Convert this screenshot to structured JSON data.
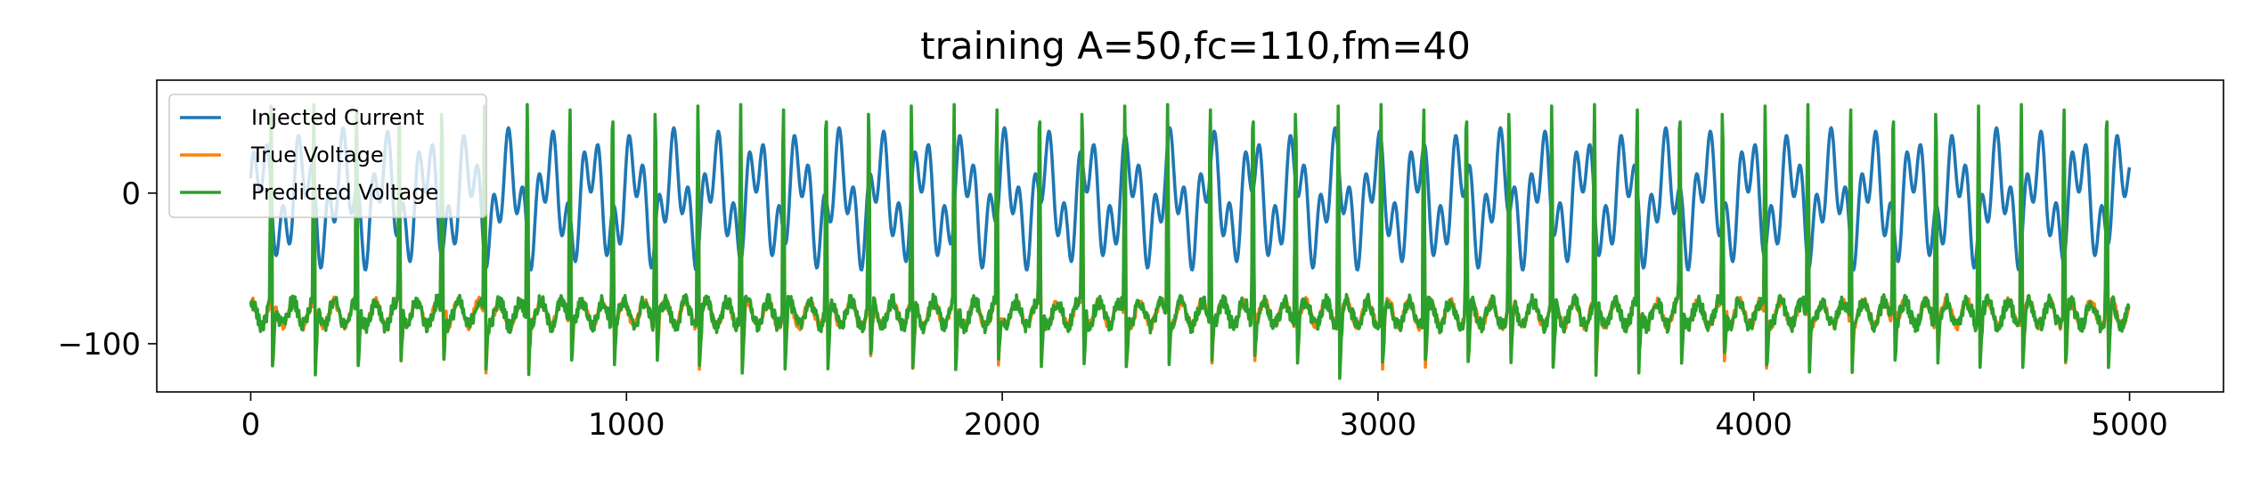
{
  "chart_data": {
    "type": "line",
    "title": "training A=50,fc=110,fm=40",
    "xlabel": "",
    "ylabel": "",
    "xlim": [
      -250,
      5250
    ],
    "ylim": [
      -132,
      75
    ],
    "x_ticks": [
      0,
      1000,
      2000,
      3000,
      4000,
      5000
    ],
    "x_tick_labels": [
      "0",
      "1000",
      "2000",
      "3000",
      "4000",
      "5000"
    ],
    "y_ticks": [
      0,
      -100
    ],
    "y_tick_labels": [
      "0",
      "−100"
    ],
    "grid": false,
    "legend_position": "top-left",
    "x_range": [
      0,
      5000
    ],
    "current_signal": {
      "amplitude": 50,
      "carrier_period": 110,
      "modulation_period": 40
    },
    "series": [
      {
        "name": "Injected Current",
        "color": "#1f77b4",
        "x_sampled": [
          0,
          50,
          100,
          150,
          200,
          250,
          300,
          350,
          400,
          450,
          500,
          600,
          700,
          800,
          900,
          1000,
          1100,
          1200,
          1300,
          1400
        ],
        "y_sampled": [
          0,
          -5,
          30,
          -40,
          10,
          5,
          -30,
          38,
          -20,
          15,
          0,
          -35,
          10,
          20,
          -45,
          35,
          0,
          38,
          -40,
          20
        ]
      },
      {
        "name": "True Voltage",
        "color": "#ff7f0e",
        "baseline": -80,
        "spike_peak": 50,
        "spike_trough": -118
      },
      {
        "name": "Predicted Voltage",
        "color": "#2ca02c",
        "baseline": -80,
        "spike_peak": 55,
        "spike_trough": -120
      }
    ]
  }
}
